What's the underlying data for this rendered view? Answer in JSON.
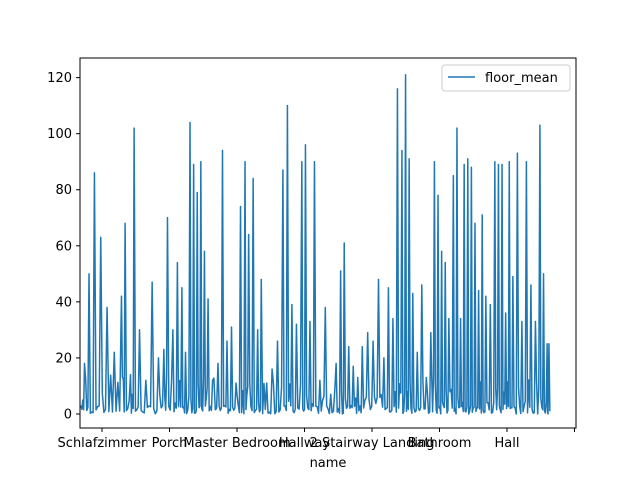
{
  "chart_data": {
    "type": "line",
    "xlabel": "name",
    "ylabel": "",
    "title": "",
    "ylim": [
      -5,
      127
    ],
    "yticks": [
      0,
      20,
      40,
      60,
      80,
      100,
      120
    ],
    "x_tick_labels": [
      "Schlafzimmer",
      "Porch",
      "Master Bedroom",
      "Hallway",
      "2 Stairway Landing",
      "Bathroom",
      "Hall",
      ""
    ],
    "grid": false,
    "legend_position": "top-right",
    "line_color": "#1f77b4",
    "series": [
      {
        "name": "floor_mean",
        "peaks": [
          {
            "x": 0.5,
            "y": 18
          },
          {
            "x": 1.0,
            "y": 50
          },
          {
            "x": 1.6,
            "y": 86
          },
          {
            "x": 2.3,
            "y": 63
          },
          {
            "x": 3.0,
            "y": 38
          },
          {
            "x": 3.8,
            "y": 22
          },
          {
            "x": 4.6,
            "y": 42
          },
          {
            "x": 5.0,
            "y": 68
          },
          {
            "x": 5.6,
            "y": 14
          },
          {
            "x": 6.0,
            "y": 102
          },
          {
            "x": 6.6,
            "y": 30
          },
          {
            "x": 7.3,
            "y": 12
          },
          {
            "x": 8.0,
            "y": 47
          },
          {
            "x": 8.7,
            "y": 20
          },
          {
            "x": 9.3,
            "y": 23
          },
          {
            "x": 9.7,
            "y": 70
          },
          {
            "x": 10.3,
            "y": 30
          },
          {
            "x": 10.8,
            "y": 54
          },
          {
            "x": 11.3,
            "y": 45
          },
          {
            "x": 11.7,
            "y": 22
          },
          {
            "x": 12.2,
            "y": 104
          },
          {
            "x": 12.6,
            "y": 89
          },
          {
            "x": 13.0,
            "y": 79
          },
          {
            "x": 13.4,
            "y": 90
          },
          {
            "x": 13.8,
            "y": 58
          },
          {
            "x": 14.2,
            "y": 41
          },
          {
            "x": 14.7,
            "y": 12
          },
          {
            "x": 15.3,
            "y": 18
          },
          {
            "x": 15.8,
            "y": 94
          },
          {
            "x": 16.3,
            "y": 26
          },
          {
            "x": 16.8,
            "y": 31
          },
          {
            "x": 17.3,
            "y": 11
          },
          {
            "x": 17.8,
            "y": 74
          },
          {
            "x": 18.3,
            "y": 90
          },
          {
            "x": 18.7,
            "y": 64
          },
          {
            "x": 19.2,
            "y": 84
          },
          {
            "x": 19.7,
            "y": 30
          },
          {
            "x": 20.1,
            "y": 48
          },
          {
            "x": 20.7,
            "y": 11
          },
          {
            "x": 21.3,
            "y": 16
          },
          {
            "x": 21.9,
            "y": 26
          },
          {
            "x": 22.5,
            "y": 87
          },
          {
            "x": 23.0,
            "y": 110
          },
          {
            "x": 23.5,
            "y": 39
          },
          {
            "x": 24.0,
            "y": 32
          },
          {
            "x": 24.6,
            "y": 90
          },
          {
            "x": 25.0,
            "y": 96
          },
          {
            "x": 25.5,
            "y": 33
          },
          {
            "x": 26.0,
            "y": 90
          },
          {
            "x": 26.6,
            "y": 12
          },
          {
            "x": 27.2,
            "y": 38
          },
          {
            "x": 27.8,
            "y": 7
          },
          {
            "x": 28.4,
            "y": 18
          },
          {
            "x": 28.9,
            "y": 51
          },
          {
            "x": 29.3,
            "y": 61
          },
          {
            "x": 29.8,
            "y": 24
          },
          {
            "x": 30.3,
            "y": 17
          },
          {
            "x": 30.8,
            "y": 13
          },
          {
            "x": 31.3,
            "y": 24
          },
          {
            "x": 31.9,
            "y": 29
          },
          {
            "x": 32.5,
            "y": 26
          },
          {
            "x": 33.1,
            "y": 48
          },
          {
            "x": 33.7,
            "y": 20
          },
          {
            "x": 34.2,
            "y": 45
          },
          {
            "x": 34.7,
            "y": 34
          },
          {
            "x": 35.2,
            "y": 116
          },
          {
            "x": 35.7,
            "y": 94
          },
          {
            "x": 36.1,
            "y": 121
          },
          {
            "x": 36.5,
            "y": 91
          },
          {
            "x": 36.9,
            "y": 43
          },
          {
            "x": 37.4,
            "y": 22
          },
          {
            "x": 37.9,
            "y": 46
          },
          {
            "x": 38.4,
            "y": 13
          },
          {
            "x": 38.9,
            "y": 29
          },
          {
            "x": 39.3,
            "y": 90
          },
          {
            "x": 39.7,
            "y": 78
          },
          {
            "x": 40.1,
            "y": 58
          },
          {
            "x": 40.5,
            "y": 54
          },
          {
            "x": 40.9,
            "y": 34
          },
          {
            "x": 41.4,
            "y": 85
          },
          {
            "x": 41.8,
            "y": 102
          },
          {
            "x": 42.2,
            "y": 34
          },
          {
            "x": 42.6,
            "y": 89
          },
          {
            "x": 43.0,
            "y": 91
          },
          {
            "x": 43.4,
            "y": 88
          },
          {
            "x": 43.8,
            "y": 68
          },
          {
            "x": 44.2,
            "y": 44
          },
          {
            "x": 44.6,
            "y": 71
          },
          {
            "x": 45.0,
            "y": 42
          },
          {
            "x": 45.5,
            "y": 39
          },
          {
            "x": 46.0,
            "y": 90
          },
          {
            "x": 46.4,
            "y": 89
          },
          {
            "x": 46.8,
            "y": 89
          },
          {
            "x": 47.2,
            "y": 36
          },
          {
            "x": 47.6,
            "y": 90
          },
          {
            "x": 48.0,
            "y": 49
          },
          {
            "x": 48.5,
            "y": 93
          },
          {
            "x": 49.0,
            "y": 33
          },
          {
            "x": 49.5,
            "y": 90
          },
          {
            "x": 50.0,
            "y": 46
          },
          {
            "x": 50.5,
            "y": 33
          },
          {
            "x": 51.0,
            "y": 103
          },
          {
            "x": 51.4,
            "y": 50
          },
          {
            "x": 51.8,
            "y": 25
          },
          {
            "x": 52.0,
            "y": 25
          }
        ]
      }
    ]
  }
}
